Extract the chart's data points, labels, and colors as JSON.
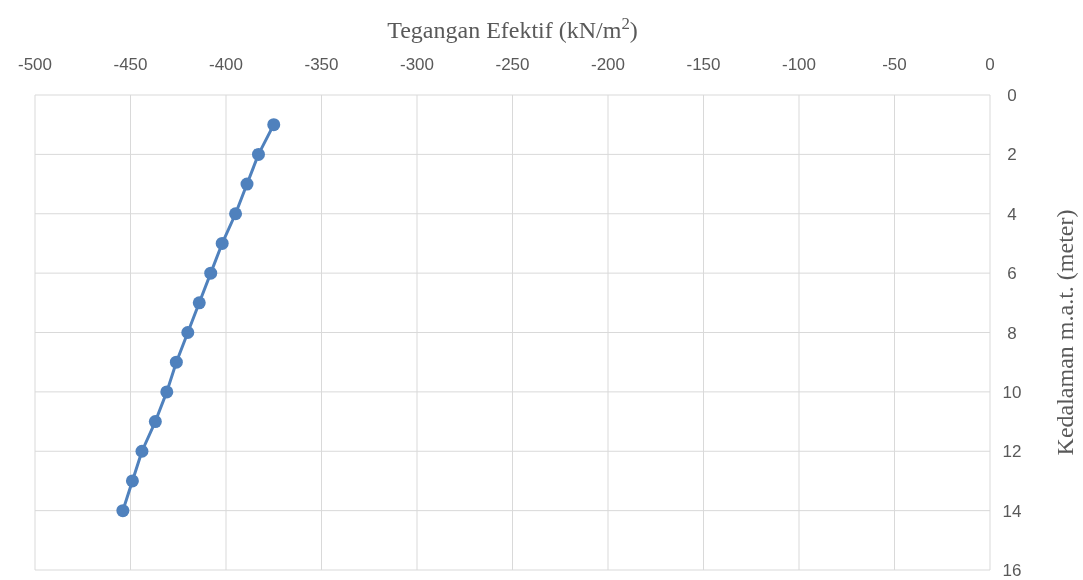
{
  "chart_data": {
    "type": "line",
    "xlabel": "Tegangan Efektif (kN/m$^{2}$)",
    "ylabel": "Kedalaman m.a.t. (meter)",
    "xlim": [
      -500,
      0
    ],
    "xticks": [
      -500,
      -450,
      -400,
      -350,
      -300,
      -250,
      -200,
      -150,
      -100,
      -50,
      0
    ],
    "ylim": [
      16,
      0
    ],
    "yticks": [
      0,
      2,
      4,
      6,
      8,
      10,
      12,
      14,
      16
    ],
    "grid": true,
    "marker": "circle",
    "line_style": "solid",
    "series": [
      {
        "color": "#4f81bd",
        "x": [
          -375,
          -383,
          -389,
          -395,
          -402,
          -408,
          -414,
          -420,
          -426,
          -431,
          -437,
          -444,
          -449,
          -454
        ],
        "values": [
          1,
          2,
          3,
          4,
          5,
          6,
          7,
          8,
          9,
          10,
          11,
          12,
          13,
          14
        ]
      }
    ]
  }
}
